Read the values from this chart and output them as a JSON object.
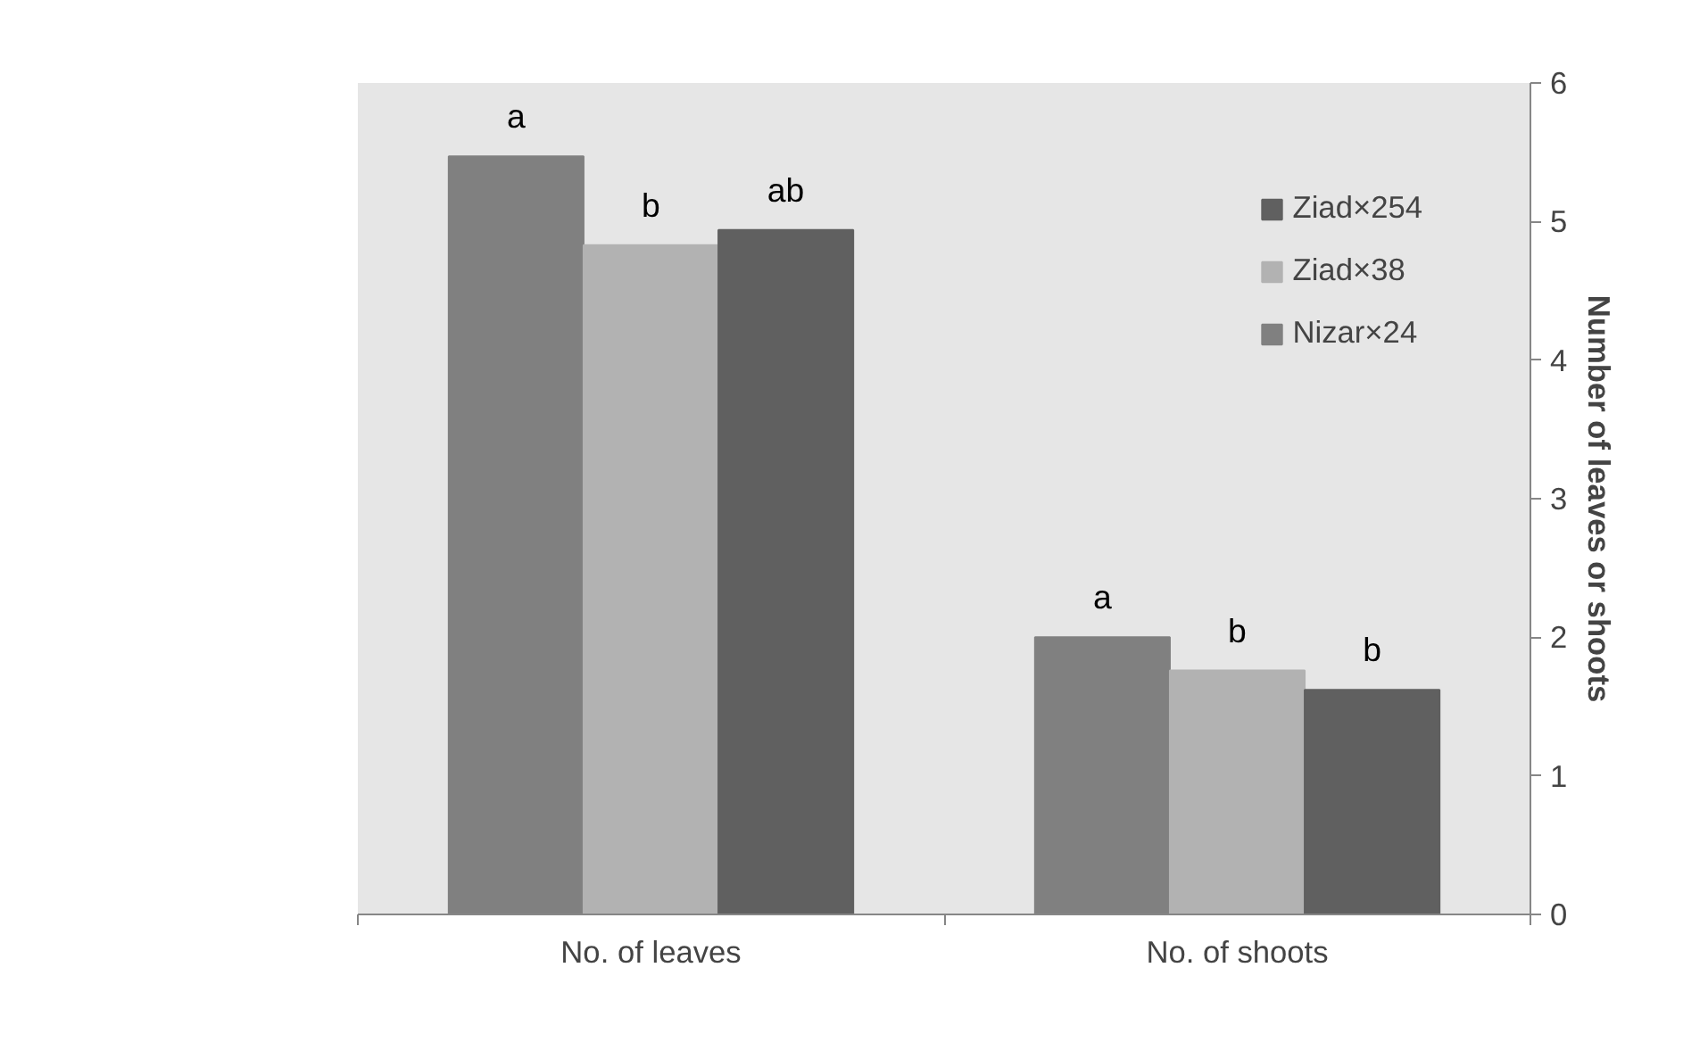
{
  "chart_data": {
    "type": "bar",
    "categories": [
      "No. of leaves",
      "No. of shoots"
    ],
    "series": [
      {
        "name": "Nizar×24",
        "color": "#808080",
        "values": [
          5.47,
          2.0
        ]
      },
      {
        "name": "Ziad×38",
        "color": "#b2b2b2",
        "values": [
          4.83,
          1.76
        ]
      },
      {
        "name": "Ziad×254",
        "color": "#606060",
        "values": [
          4.94,
          1.62
        ]
      }
    ],
    "ylabel": "Number of leaves or shoots",
    "ylim": [
      0,
      6
    ],
    "yticks": [
      0,
      1,
      2,
      3,
      4,
      5,
      6
    ],
    "legend": "top right",
    "annotations": [
      "a",
      "b",
      "ab",
      "a",
      "b",
      "b"
    ]
  }
}
